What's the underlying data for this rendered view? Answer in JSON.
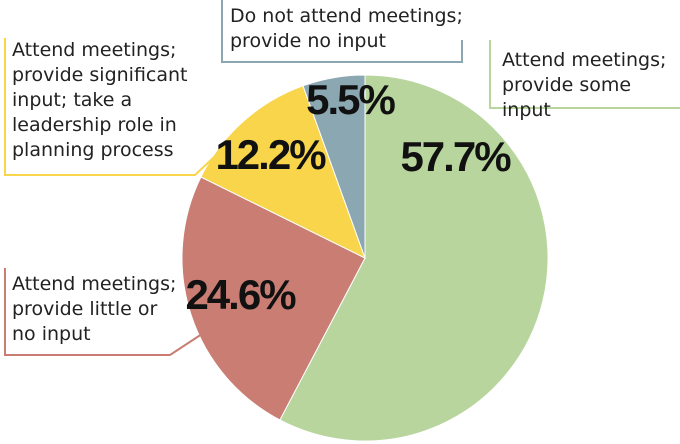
{
  "chart_data": {
    "type": "pie",
    "categories": [
      "Attend meetings;\nprovide some input",
      "Attend meetings;\nprovide little or\nno input",
      "Attend meetings;\nprovide significant\ninput; take a\nleadership role in\nplanning process",
      "Do not attend meetings;\nprovide no input"
    ],
    "values": [
      57.7,
      24.6,
      12.2,
      5.5
    ],
    "value_labels": [
      "57.7%",
      "24.6%",
      "12.2%",
      "5.5%"
    ],
    "colors": [
      "#b7d59c",
      "#c97d73",
      "#f8d54a",
      "#8ba7b2"
    ]
  }
}
